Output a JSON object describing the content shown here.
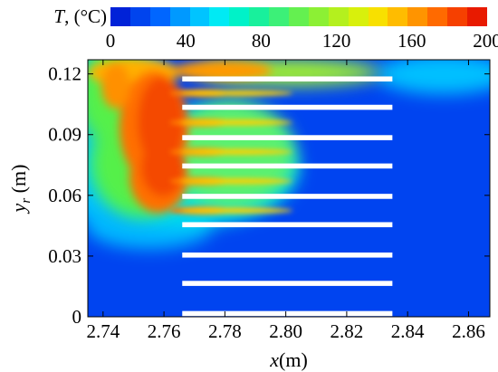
{
  "chart_data": {
    "type": "heatmap",
    "colorbar": {
      "label_var": "T",
      "label_unit": ", (°C)",
      "range": [
        0,
        200
      ],
      "ticks": [
        "0",
        "40",
        "80",
        "120",
        "160",
        "200"
      ],
      "colors": [
        "#0022d8",
        "#0044ee",
        "#0066ff",
        "#0099ff",
        "#00c4ff",
        "#00eaf4",
        "#00f2c8",
        "#18f09c",
        "#3cf078",
        "#64f050",
        "#8cf034",
        "#b4f01e",
        "#d8f00c",
        "#f8e000",
        "#ffbc00",
        "#ff9400",
        "#ff6a00",
        "#f64000",
        "#e81a00"
      ]
    },
    "xlabel_var": "x",
    "xlabel_unit": "(m)",
    "ylabel_var": "y",
    "ylabel_sub": "r",
    "ylabel_unit": " (m)",
    "xlim": [
      2.735,
      2.867
    ],
    "ylim": [
      0,
      0.127
    ],
    "x_ticks": [
      "2.74",
      "2.76",
      "2.78",
      "2.80",
      "2.82",
      "2.84",
      "2.86"
    ],
    "y_ticks": [
      "0",
      "0.03",
      "0.06",
      "0.09",
      "0.12"
    ],
    "fins": {
      "x_start": 2.766,
      "x_end": 2.835,
      "thickness": 0.0025,
      "y_centers": [
        0.0016,
        0.0165,
        0.0305,
        0.0455,
        0.0595,
        0.0745,
        0.0885,
        0.1035,
        0.1175
      ]
    }
  }
}
